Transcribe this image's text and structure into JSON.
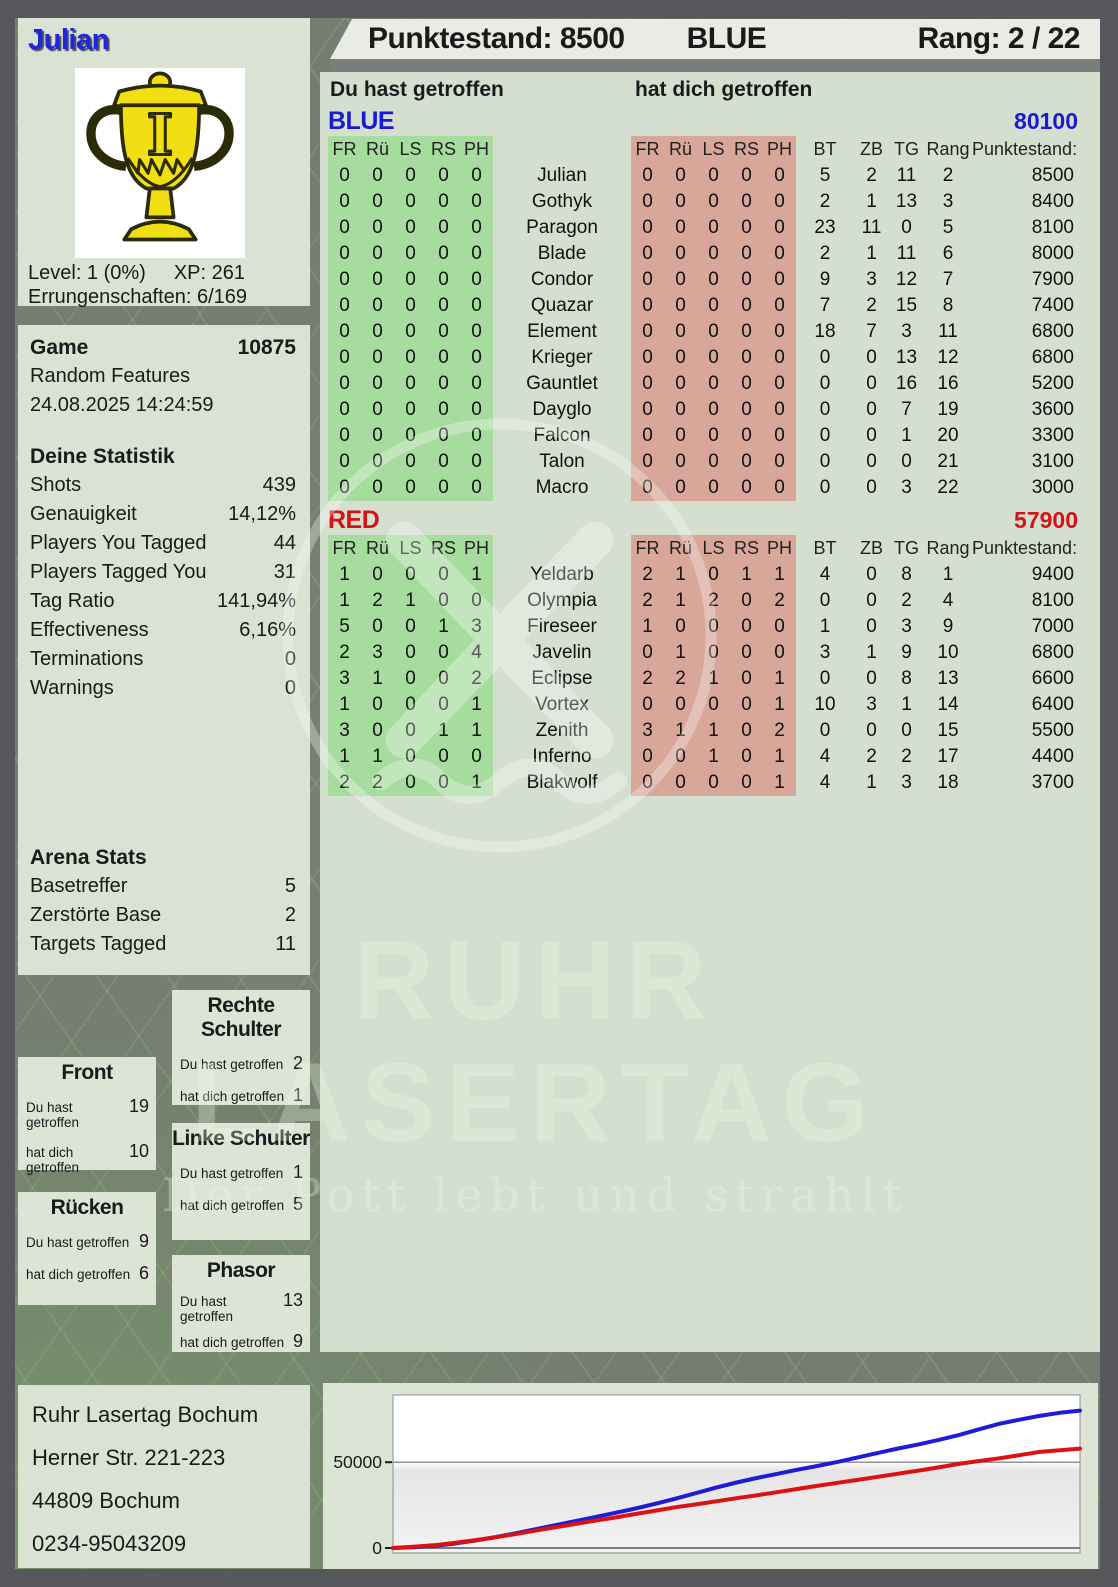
{
  "header": {
    "player_name": "Julian",
    "score_label": "Punktestand: 8500",
    "team_label": "BLUE",
    "rank_label": "Rang: 2 / 22"
  },
  "profile": {
    "trophy_icon": "gold-trophy-first-place",
    "level_label": "Level: 1 (0%)",
    "xp_label": "XP: 261",
    "achievements_label": "Errungenschaften: 6/169"
  },
  "game_info": {
    "title": "Game",
    "number": "10875",
    "mode": "Random Features",
    "datetime": "24.08.2025 14:24:59"
  },
  "your_stats": {
    "title": "Deine Statistik",
    "rows": [
      {
        "label": "Shots",
        "value": "439"
      },
      {
        "label": "Genauigkeit",
        "value": "14,12%"
      },
      {
        "label": "Players You Tagged",
        "value": "44"
      },
      {
        "label": "Players Tagged You",
        "value": "31"
      },
      {
        "label": "Tag Ratio",
        "value": "141,94%"
      },
      {
        "label": "Effectiveness",
        "value": "6,16%"
      },
      {
        "label": "Terminations",
        "value": "0"
      },
      {
        "label": "Warnings",
        "value": "0"
      }
    ]
  },
  "arena_stats": {
    "title": "Arena Stats",
    "rows": [
      {
        "label": "Basetreffer",
        "value": "5"
      },
      {
        "label": "Zerstörte Base",
        "value": "2"
      },
      {
        "label": "Targets Tagged",
        "value": "11"
      }
    ]
  },
  "labels": {
    "you_hit": "Du hast getroffen",
    "hit_you": "hat dich getroffen"
  },
  "hit_zones": [
    {
      "title": "Front",
      "you_hit": "19",
      "hit_you": "10"
    },
    {
      "title": "Rücken",
      "you_hit": "9",
      "hit_you": "6"
    },
    {
      "title": "Rechte Schulter",
      "you_hit": "2",
      "hit_you": "1"
    },
    {
      "title": "Linke Schulter",
      "you_hit": "1",
      "hit_you": "5"
    },
    {
      "title": "Phasor",
      "you_hit": "13",
      "hit_you": "9"
    }
  ],
  "scoreboard": {
    "zone_headers": [
      "FR",
      "Rü",
      "LS",
      "RS",
      "PH"
    ],
    "stat_headers": [
      "BT",
      "ZB",
      "TG",
      "Rang",
      "Punktestand:"
    ],
    "teams": [
      {
        "name": "BLUE",
        "color": "#1b18d6",
        "total": "80100",
        "players": [
          {
            "name": "Julian",
            "you_hit": [
              0,
              0,
              0,
              0,
              0
            ],
            "hit_you": [
              0,
              0,
              0,
              0,
              0
            ],
            "bt": 5,
            "zb": 2,
            "tg": 11,
            "rang": 2,
            "punktestand": 8500
          },
          {
            "name": "Gothyk",
            "you_hit": [
              0,
              0,
              0,
              0,
              0
            ],
            "hit_you": [
              0,
              0,
              0,
              0,
              0
            ],
            "bt": 2,
            "zb": 1,
            "tg": 13,
            "rang": 3,
            "punktestand": 8400
          },
          {
            "name": "Paragon",
            "you_hit": [
              0,
              0,
              0,
              0,
              0
            ],
            "hit_you": [
              0,
              0,
              0,
              0,
              0
            ],
            "bt": 23,
            "zb": 11,
            "tg": 0,
            "rang": 5,
            "punktestand": 8100
          },
          {
            "name": "Blade",
            "you_hit": [
              0,
              0,
              0,
              0,
              0
            ],
            "hit_you": [
              0,
              0,
              0,
              0,
              0
            ],
            "bt": 2,
            "zb": 1,
            "tg": 11,
            "rang": 6,
            "punktestand": 8000
          },
          {
            "name": "Condor",
            "you_hit": [
              0,
              0,
              0,
              0,
              0
            ],
            "hit_you": [
              0,
              0,
              0,
              0,
              0
            ],
            "bt": 9,
            "zb": 3,
            "tg": 12,
            "rang": 7,
            "punktestand": 7900
          },
          {
            "name": "Quazar",
            "you_hit": [
              0,
              0,
              0,
              0,
              0
            ],
            "hit_you": [
              0,
              0,
              0,
              0,
              0
            ],
            "bt": 7,
            "zb": 2,
            "tg": 15,
            "rang": 8,
            "punktestand": 7400
          },
          {
            "name": "Element",
            "you_hit": [
              0,
              0,
              0,
              0,
              0
            ],
            "hit_you": [
              0,
              0,
              0,
              0,
              0
            ],
            "bt": 18,
            "zb": 7,
            "tg": 3,
            "rang": 11,
            "punktestand": 6800
          },
          {
            "name": "Krieger",
            "you_hit": [
              0,
              0,
              0,
              0,
              0
            ],
            "hit_you": [
              0,
              0,
              0,
              0,
              0
            ],
            "bt": 0,
            "zb": 0,
            "tg": 13,
            "rang": 12,
            "punktestand": 6800
          },
          {
            "name": "Gauntlet",
            "you_hit": [
              0,
              0,
              0,
              0,
              0
            ],
            "hit_you": [
              0,
              0,
              0,
              0,
              0
            ],
            "bt": 0,
            "zb": 0,
            "tg": 16,
            "rang": 16,
            "punktestand": 5200
          },
          {
            "name": "Dayglo",
            "you_hit": [
              0,
              0,
              0,
              0,
              0
            ],
            "hit_you": [
              0,
              0,
              0,
              0,
              0
            ],
            "bt": 0,
            "zb": 0,
            "tg": 7,
            "rang": 19,
            "punktestand": 3600
          },
          {
            "name": "Falcon",
            "you_hit": [
              0,
              0,
              0,
              0,
              0
            ],
            "hit_you": [
              0,
              0,
              0,
              0,
              0
            ],
            "bt": 0,
            "zb": 0,
            "tg": 1,
            "rang": 20,
            "punktestand": 3300
          },
          {
            "name": "Talon",
            "you_hit": [
              0,
              0,
              0,
              0,
              0
            ],
            "hit_you": [
              0,
              0,
              0,
              0,
              0
            ],
            "bt": 0,
            "zb": 0,
            "tg": 0,
            "rang": 21,
            "punktestand": 3100
          },
          {
            "name": "Macro",
            "you_hit": [
              0,
              0,
              0,
              0,
              0
            ],
            "hit_you": [
              0,
              0,
              0,
              0,
              0
            ],
            "bt": 0,
            "zb": 0,
            "tg": 3,
            "rang": 22,
            "punktestand": 3000
          }
        ]
      },
      {
        "name": "RED",
        "color": "#d31414",
        "total": "57900",
        "players": [
          {
            "name": "Yeldarb",
            "you_hit": [
              1,
              0,
              0,
              0,
              1
            ],
            "hit_you": [
              2,
              1,
              0,
              1,
              1
            ],
            "bt": 4,
            "zb": 0,
            "tg": 8,
            "rang": 1,
            "punktestand": 9400
          },
          {
            "name": "Olympia",
            "you_hit": [
              1,
              2,
              1,
              0,
              0
            ],
            "hit_you": [
              2,
              1,
              2,
              0,
              2
            ],
            "bt": 0,
            "zb": 0,
            "tg": 2,
            "rang": 4,
            "punktestand": 8100
          },
          {
            "name": "Fireseer",
            "you_hit": [
              5,
              0,
              0,
              1,
              3
            ],
            "hit_you": [
              1,
              0,
              0,
              0,
              0
            ],
            "bt": 1,
            "zb": 0,
            "tg": 3,
            "rang": 9,
            "punktestand": 7000
          },
          {
            "name": "Javelin",
            "you_hit": [
              2,
              3,
              0,
              0,
              4
            ],
            "hit_you": [
              0,
              1,
              0,
              0,
              0
            ],
            "bt": 3,
            "zb": 1,
            "tg": 9,
            "rang": 10,
            "punktestand": 6800
          },
          {
            "name": "Eclipse",
            "you_hit": [
              3,
              1,
              0,
              0,
              2
            ],
            "hit_you": [
              2,
              2,
              1,
              0,
              1
            ],
            "bt": 0,
            "zb": 0,
            "tg": 8,
            "rang": 13,
            "punktestand": 6600
          },
          {
            "name": "Vortex",
            "you_hit": [
              1,
              0,
              0,
              0,
              1
            ],
            "hit_you": [
              0,
              0,
              0,
              0,
              1
            ],
            "bt": 10,
            "zb": 3,
            "tg": 1,
            "rang": 14,
            "punktestand": 6400
          },
          {
            "name": "Zenith",
            "you_hit": [
              3,
              0,
              0,
              1,
              1
            ],
            "hit_you": [
              3,
              1,
              1,
              0,
              2
            ],
            "bt": 0,
            "zb": 0,
            "tg": 0,
            "rang": 15,
            "punktestand": 5500
          },
          {
            "name": "Inferno",
            "you_hit": [
              1,
              1,
              0,
              0,
              0
            ],
            "hit_you": [
              0,
              0,
              1,
              0,
              1
            ],
            "bt": 4,
            "zb": 2,
            "tg": 2,
            "rang": 17,
            "punktestand": 4400
          },
          {
            "name": "Blakwolf",
            "you_hit": [
              2,
              2,
              0,
              0,
              1
            ],
            "hit_you": [
              0,
              0,
              0,
              0,
              1
            ],
            "bt": 4,
            "zb": 1,
            "tg": 3,
            "rang": 18,
            "punktestand": 3700
          }
        ]
      }
    ]
  },
  "venue": {
    "lines": [
      "Ruhr Lasertag Bochum",
      "Herner Str. 221-223",
      "44809 Bochum",
      "0234-95043209"
    ]
  },
  "watermark": {
    "line1": "RUHR",
    "line2": "LASERTAG",
    "line3": "Der Pott lebt und strahlt",
    "logo_icon": "hammer-and-pick-circle-logo"
  },
  "chart_data": {
    "type": "line",
    "title": "",
    "xlabel": "",
    "ylabel": "",
    "ylim": [
      0,
      88000
    ],
    "yticks": [
      0,
      50000
    ],
    "grid": "horizontal",
    "legend_position": "none",
    "series": [
      {
        "name": "BLUE",
        "color": "#1d1dd8",
        "values": [
          0,
          400,
          1200,
          2500,
          4200,
          6200,
          8400,
          10800,
          13200,
          15600,
          18000,
          20500,
          23000,
          25800,
          28800,
          32000,
          35200,
          38200,
          40800,
          43200,
          45600,
          47800,
          50200,
          52800,
          55400,
          58000,
          60400,
          63000,
          65800,
          69200,
          72400,
          74800,
          77000,
          78800,
          80100
        ]
      },
      {
        "name": "RED",
        "color": "#dc1212",
        "values": [
          0,
          700,
          1600,
          2900,
          4400,
          6100,
          8000,
          10000,
          12000,
          14000,
          15900,
          17800,
          19800,
          21800,
          23800,
          25400,
          27200,
          29000,
          30700,
          32500,
          34400,
          36200,
          38000,
          39700,
          41500,
          43300,
          45100,
          47000,
          49000,
          50700,
          52300,
          54100,
          56000,
          57000,
          57900
        ]
      }
    ]
  }
}
